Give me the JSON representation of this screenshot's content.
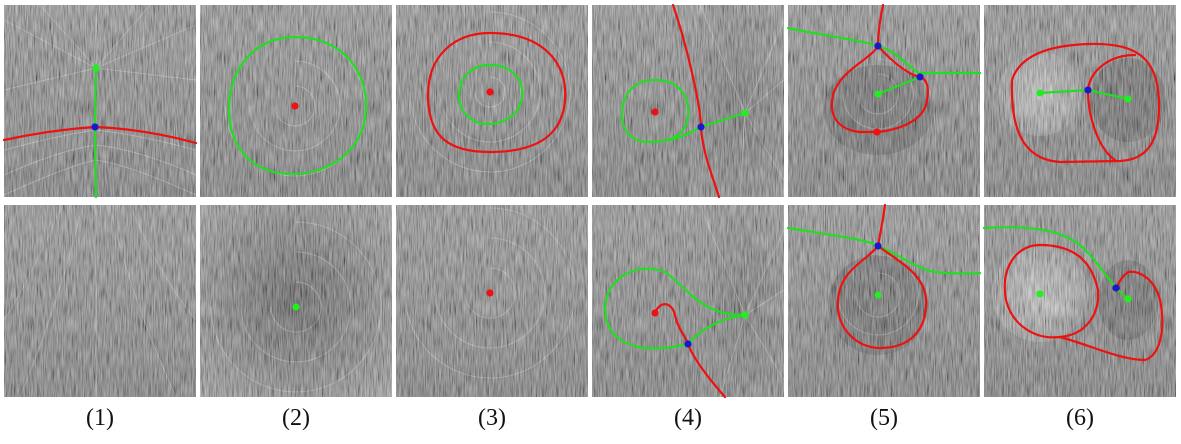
{
  "colors": {
    "background": "#ffffff",
    "tile_dark": "#3a3a3a",
    "tile_light": "#9c9c9c",
    "streak": "#e6e6e6",
    "separatrix_green": "#22dd22",
    "separatrix_red": "#ee1111",
    "point_green": "#22ee22",
    "point_red": "#ee1111",
    "point_blue": "#1a1acc"
  },
  "columns": [
    {
      "label": "(1)",
      "top": {
        "field": "source-saddle"
      },
      "bottom": {
        "field": "simplified-flow"
      }
    },
    {
      "label": "(2)",
      "top": {
        "field": "spiral-with-limit-cycle"
      },
      "bottom": {
        "field": "spiral-sink"
      }
    },
    {
      "label": "(3)",
      "top": {
        "field": "nested-limit-cycles"
      },
      "bottom": {
        "field": "spiral-source"
      }
    },
    {
      "label": "(4)",
      "top": {
        "field": "cycle-saddle-source"
      },
      "bottom": {
        "field": "homoclinic-loop"
      }
    },
    {
      "label": "(5)",
      "top": {
        "field": "double-loop"
      },
      "bottom": {
        "field": "single-loop"
      }
    },
    {
      "label": "(6)",
      "top": {
        "field": "figure-eight"
      },
      "bottom": {
        "field": "broken-figure-eight"
      }
    }
  ]
}
